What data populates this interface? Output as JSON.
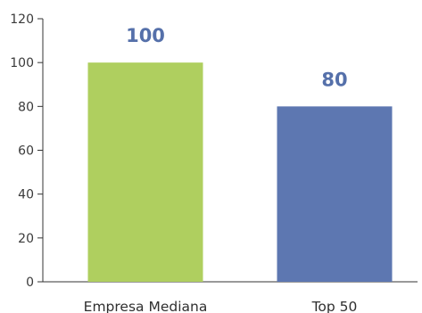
{
  "chart_data": {
    "type": "bar",
    "categories": [
      "Empresa Mediana",
      "Top 50"
    ],
    "values": [
      100,
      80
    ],
    "data_labels": [
      "100",
      "80"
    ],
    "colors": [
      "#afcf5f",
      "#5d77b1"
    ],
    "label_color": "#5570aa",
    "ylim": [
      0,
      120
    ],
    "yticks": [
      0,
      20,
      40,
      60,
      80,
      100,
      120
    ],
    "ytick_labels": [
      "0",
      "20",
      "40",
      "60",
      "80",
      "100",
      "120"
    ],
    "title": "",
    "xlabel": "",
    "ylabel": "",
    "grid": false,
    "legend": "none"
  }
}
